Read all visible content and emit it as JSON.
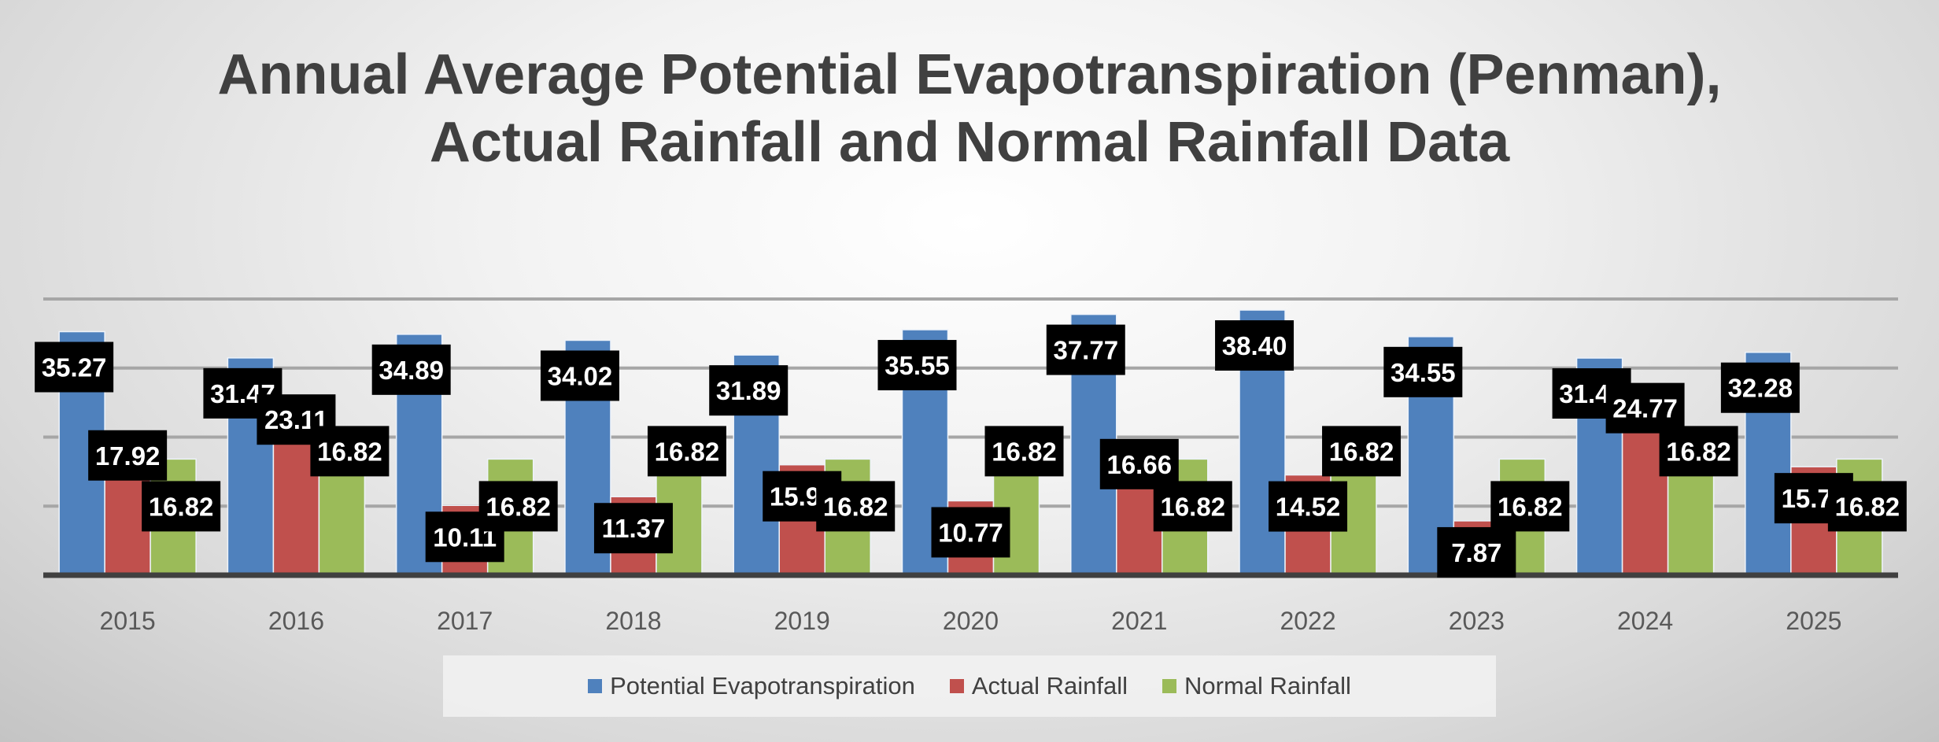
{
  "chart_data": {
    "type": "bar",
    "title_line1": "Annual Average Potential Evapotranspiration (Penman),",
    "title_line2": "Actual Rainfall and Normal Rainfall Data",
    "categories": [
      "2015",
      "2016",
      "2017",
      "2018",
      "2019",
      "2020",
      "2021",
      "2022",
      "2023",
      "2024",
      "2025"
    ],
    "series": [
      {
        "name": "Potential Evapotranspiration",
        "color": "#4f81bd",
        "values": [
          35.27,
          31.47,
          34.89,
          34.02,
          31.89,
          35.55,
          37.77,
          38.4,
          34.55,
          31.45,
          32.28
        ]
      },
      {
        "name": "Actual Rainfall",
        "color": "#c0504d",
        "values": [
          17.92,
          23.11,
          10.11,
          11.37,
          15.99,
          10.77,
          16.66,
          14.52,
          7.87,
          24.77,
          15.71
        ]
      },
      {
        "name": "Normal Rainfall",
        "color": "#9bbb59",
        "values": [
          16.82,
          16.82,
          16.82,
          16.82,
          16.82,
          16.82,
          16.82,
          16.82,
          16.82,
          16.82,
          16.82
        ]
      }
    ],
    "ylim": [
      0,
      40
    ],
    "gridlines": [
      10,
      20,
      30,
      40
    ],
    "grid": true,
    "y_tick_labels_shown": false,
    "legend_position": "bottom",
    "data_label_style": "white bold text on black box"
  }
}
